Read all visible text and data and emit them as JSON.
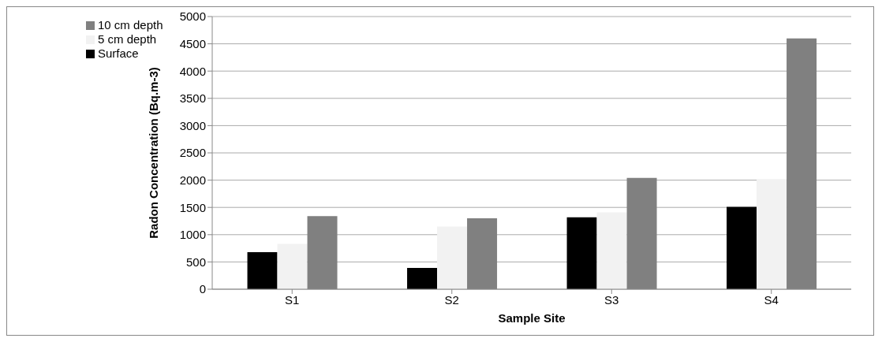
{
  "chart_data": {
    "type": "bar",
    "xlabel": "Sample Site",
    "ylabel": "Radon Concentration (Bq.m-3)",
    "categories": [
      "S1",
      "S2",
      "S3",
      "S4"
    ],
    "series": [
      {
        "name": "Surface",
        "color": "#000000",
        "values": [
          680,
          390,
          1320,
          1510
        ]
      },
      {
        "name": "5 cm depth",
        "color": "#f2f2f2",
        "values": [
          830,
          1150,
          1410,
          2020
        ]
      },
      {
        "name": "10 cm depth",
        "color": "#808080",
        "values": [
          1340,
          1300,
          2040,
          4600
        ]
      }
    ],
    "ylim": [
      0,
      5000
    ],
    "yticks": [
      0,
      500,
      1000,
      1500,
      2000,
      2500,
      3000,
      3500,
      4000,
      4500,
      5000
    ],
    "grid": "y",
    "legend": "top left"
  }
}
